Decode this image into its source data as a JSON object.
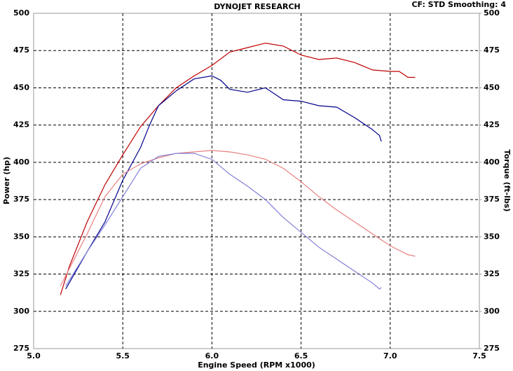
{
  "chart_data": {
    "type": "line",
    "title": "DYNOJET RESEARCH",
    "subtitle": "CF: STD  Smoothing: 4",
    "x_label": "Engine Speed (RPM x1000)",
    "y_label": "Power (hp)",
    "y2_label": "Torque (ft-lbs)",
    "xlim": [
      5,
      7.5
    ],
    "xticks": [
      {
        "value": 5,
        "label": "5.0"
      },
      5.5,
      {
        "value": 6,
        "label": "6.0"
      },
      6.5,
      {
        "value": 7,
        "label": "7.0"
      },
      7.5
    ],
    "ylim": [
      275,
      500
    ],
    "yticks": [
      275,
      300,
      325,
      350,
      375,
      400,
      425,
      450,
      475,
      500
    ],
    "y2lim": [
      275,
      500
    ],
    "y2ticks": [
      275,
      300,
      325,
      350,
      375,
      400,
      425,
      450,
      475,
      500
    ],
    "grid": true,
    "series": [
      {
        "color": "#c00000",
        "x": [
          5.15,
          5.2,
          5.3,
          5.4,
          5.5,
          5.6,
          5.7,
          5.8,
          5.9,
          6.0,
          6.1,
          6.2,
          6.3,
          6.4,
          6.5,
          6.6,
          6.7,
          6.8,
          6.9,
          7.0,
          7.05,
          7.1,
          7.14
        ],
        "values": [
          311,
          330,
          360,
          385,
          405,
          424,
          438,
          450,
          458,
          465,
          474,
          477,
          480,
          478,
          472,
          469,
          470,
          467,
          462,
          461,
          461,
          457,
          457
        ]
      },
      {
        "color": "#00008b",
        "x": [
          5.18,
          5.3,
          5.4,
          5.5,
          5.6,
          5.65,
          5.7,
          5.8,
          5.9,
          6.0,
          6.05,
          6.1,
          6.2,
          6.3,
          6.4,
          6.5,
          6.6,
          6.7,
          6.8,
          6.9,
          6.94,
          6.95
        ],
        "values": [
          315,
          340,
          360,
          388,
          410,
          425,
          438,
          448,
          456,
          458,
          455,
          449,
          447,
          450,
          442,
          441,
          438,
          437,
          430,
          422,
          418,
          414
        ]
      },
      {
        "color": "#e88080",
        "axis": "y2",
        "x": [
          5.15,
          5.3,
          5.4,
          5.5,
          5.6,
          5.7,
          5.8,
          5.9,
          6.0,
          6.1,
          6.2,
          6.3,
          6.4,
          6.5,
          6.6,
          6.7,
          6.8,
          6.9,
          7.0,
          7.1,
          7.14
        ],
        "values": [
          317,
          352,
          377,
          392,
          399,
          403,
          406,
          407,
          408,
          407,
          405,
          402,
          396,
          387,
          377,
          368,
          360,
          352,
          344,
          338,
          337
        ]
      },
      {
        "color": "#8080d8",
        "axis": "y2",
        "x": [
          5.18,
          5.3,
          5.4,
          5.5,
          5.6,
          5.7,
          5.8,
          5.9,
          6.0,
          6.1,
          6.2,
          6.3,
          6.4,
          6.5,
          6.6,
          6.7,
          6.8,
          6.9,
          6.94,
          6.95
        ],
        "values": [
          317,
          340,
          358,
          377,
          396,
          404,
          406,
          406,
          402,
          392,
          384,
          375,
          363,
          353,
          343,
          335,
          327,
          319,
          315,
          316
        ]
      }
    ]
  }
}
